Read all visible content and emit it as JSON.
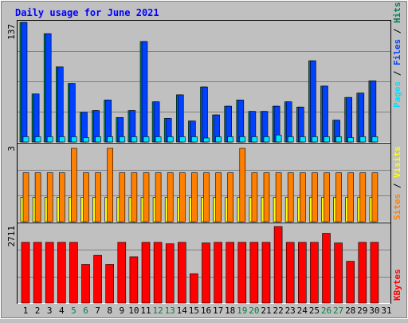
{
  "title": "Daily usage for June 2021",
  "colors": {
    "background": "#c0c0c0",
    "panel": "#c0c0c0",
    "hits": "#00805c",
    "files": "#0040ff",
    "pages": "#00e0ff",
    "visits": "#ffff00",
    "sites": "#ff8000",
    "kbytes": "#ff0000",
    "title": "#0000ff",
    "weekday_label": "#000000",
    "weekend_label": "#008040"
  },
  "right_labels": {
    "top": {
      "pages": "Pages",
      "files": "Files",
      "hits": "Hits",
      "sep": " / "
    },
    "middle": {
      "sites": "Sites",
      "visits": "Visits",
      "sep": " / "
    },
    "bottom": {
      "kbytes": "KBytes"
    }
  },
  "chart_data": [
    {
      "type": "bar",
      "panel": "hits-files-pages",
      "y_max_label": "137",
      "ylim": [
        0,
        137
      ],
      "x": [
        1,
        2,
        3,
        4,
        5,
        6,
        7,
        8,
        9,
        10,
        11,
        12,
        13,
        14,
        15,
        16,
        17,
        18,
        19,
        20,
        21,
        22,
        23,
        24,
        25,
        26,
        27,
        28,
        29,
        30,
        31
      ],
      "weekend_days": [
        5,
        6,
        12,
        13,
        19,
        20,
        26,
        27
      ],
      "series": [
        {
          "name": "Hits",
          "values": [
            137,
            55,
            124,
            86,
            67,
            34,
            36,
            48,
            28,
            36,
            115,
            46,
            27,
            54,
            24,
            63,
            31,
            41,
            48,
            35,
            35,
            41,
            46,
            40,
            93,
            64,
            25,
            51,
            56,
            70,
            0
          ]
        },
        {
          "name": "Files",
          "values": [
            137,
            55,
            124,
            86,
            67,
            34,
            36,
            48,
            28,
            36,
            115,
            46,
            27,
            54,
            24,
            63,
            31,
            41,
            48,
            35,
            35,
            41,
            46,
            40,
            93,
            64,
            25,
            51,
            56,
            70,
            0
          ]
        },
        {
          "name": "Pages",
          "values": [
            6,
            6,
            6,
            6,
            6,
            5,
            6,
            6,
            6,
            6,
            6,
            6,
            6,
            6,
            6,
            4,
            6,
            6,
            6,
            6,
            6,
            8,
            6,
            6,
            6,
            6,
            6,
            5,
            6,
            6,
            0
          ]
        }
      ]
    },
    {
      "type": "bar",
      "panel": "visits-sites",
      "y_max_label": "3",
      "ylim": [
        0,
        3
      ],
      "x": [
        1,
        2,
        3,
        4,
        5,
        6,
        7,
        8,
        9,
        10,
        11,
        12,
        13,
        14,
        15,
        16,
        17,
        18,
        19,
        20,
        21,
        22,
        23,
        24,
        25,
        26,
        27,
        28,
        29,
        30,
        31
      ],
      "series": [
        {
          "name": "Visits",
          "values": [
            1,
            1,
            1,
            1,
            1,
            1,
            1,
            1,
            1,
            1,
            1,
            1,
            1,
            1,
            1,
            1,
            1,
            1,
            1,
            1,
            1,
            1,
            1,
            1,
            1,
            1,
            1,
            1,
            1,
            1,
            0
          ]
        },
        {
          "name": "Sites",
          "values": [
            2,
            2,
            2,
            2,
            3,
            2,
            2,
            3,
            2,
            2,
            2,
            2,
            2,
            2,
            2,
            2,
            2,
            2,
            3,
            2,
            2,
            2,
            2,
            2,
            2,
            2,
            2,
            2,
            2,
            2,
            0
          ]
        }
      ]
    },
    {
      "type": "bar",
      "panel": "kbytes",
      "y_max_label": "2711",
      "ylim": [
        0,
        2711
      ],
      "x": [
        1,
        2,
        3,
        4,
        5,
        6,
        7,
        8,
        9,
        10,
        11,
        12,
        13,
        14,
        15,
        16,
        17,
        18,
        19,
        20,
        21,
        22,
        23,
        24,
        25,
        26,
        27,
        28,
        29,
        30,
        31
      ],
      "series": [
        {
          "name": "KBytes",
          "values": [
            2150,
            2150,
            2150,
            2150,
            2150,
            1370,
            1690,
            1370,
            2150,
            1640,
            2150,
            2150,
            2100,
            2150,
            1040,
            2130,
            2150,
            2150,
            2150,
            2150,
            2150,
            2711,
            2150,
            2150,
            2150,
            2470,
            2130,
            1480,
            2150,
            2150,
            0
          ]
        }
      ]
    }
  ]
}
